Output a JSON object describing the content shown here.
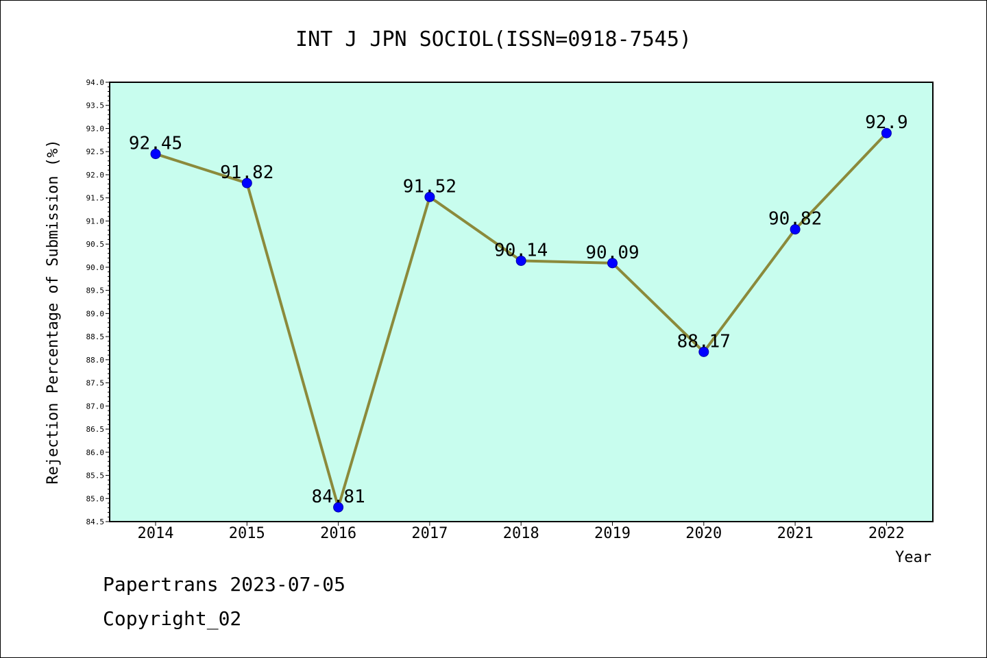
{
  "chart_data": {
    "type": "line",
    "title": "INT J JPN SOCIOL(ISSN=0918-7545)",
    "xlabel": "Year",
    "ylabel": "Rejection Percentage of Submission (%)",
    "categories": [
      "2014",
      "2015",
      "2016",
      "2017",
      "2018",
      "2019",
      "2020",
      "2021",
      "2022"
    ],
    "series": [
      {
        "values": [
          92.45,
          91.82,
          84.81,
          91.52,
          90.14,
          90.09,
          88.17,
          90.82,
          92.9
        ]
      }
    ],
    "data_labels": [
      "92.45",
      "91.82",
      "84.81",
      "91.52",
      "90.14",
      "90.09",
      "88.17",
      "90.82",
      "92.9"
    ],
    "ylim": [
      84.5,
      94.0
    ],
    "yticks": [
      "84.5",
      "85.0",
      "85.5",
      "86.0",
      "86.5",
      "87.0",
      "87.5",
      "88.0",
      "88.5",
      "89.0",
      "89.5",
      "90.0",
      "90.5",
      "91.0",
      "91.5",
      "92.0",
      "92.5",
      "93.0",
      "93.5",
      "94.0"
    ],
    "grid": false,
    "colors": {
      "plot_background": "#c8fdee",
      "line": "#8b8a3b",
      "marker": "#0000ff"
    }
  },
  "footer": {
    "line1": "Papertrans 2023-07-05",
    "line2": "Copyright_02"
  }
}
